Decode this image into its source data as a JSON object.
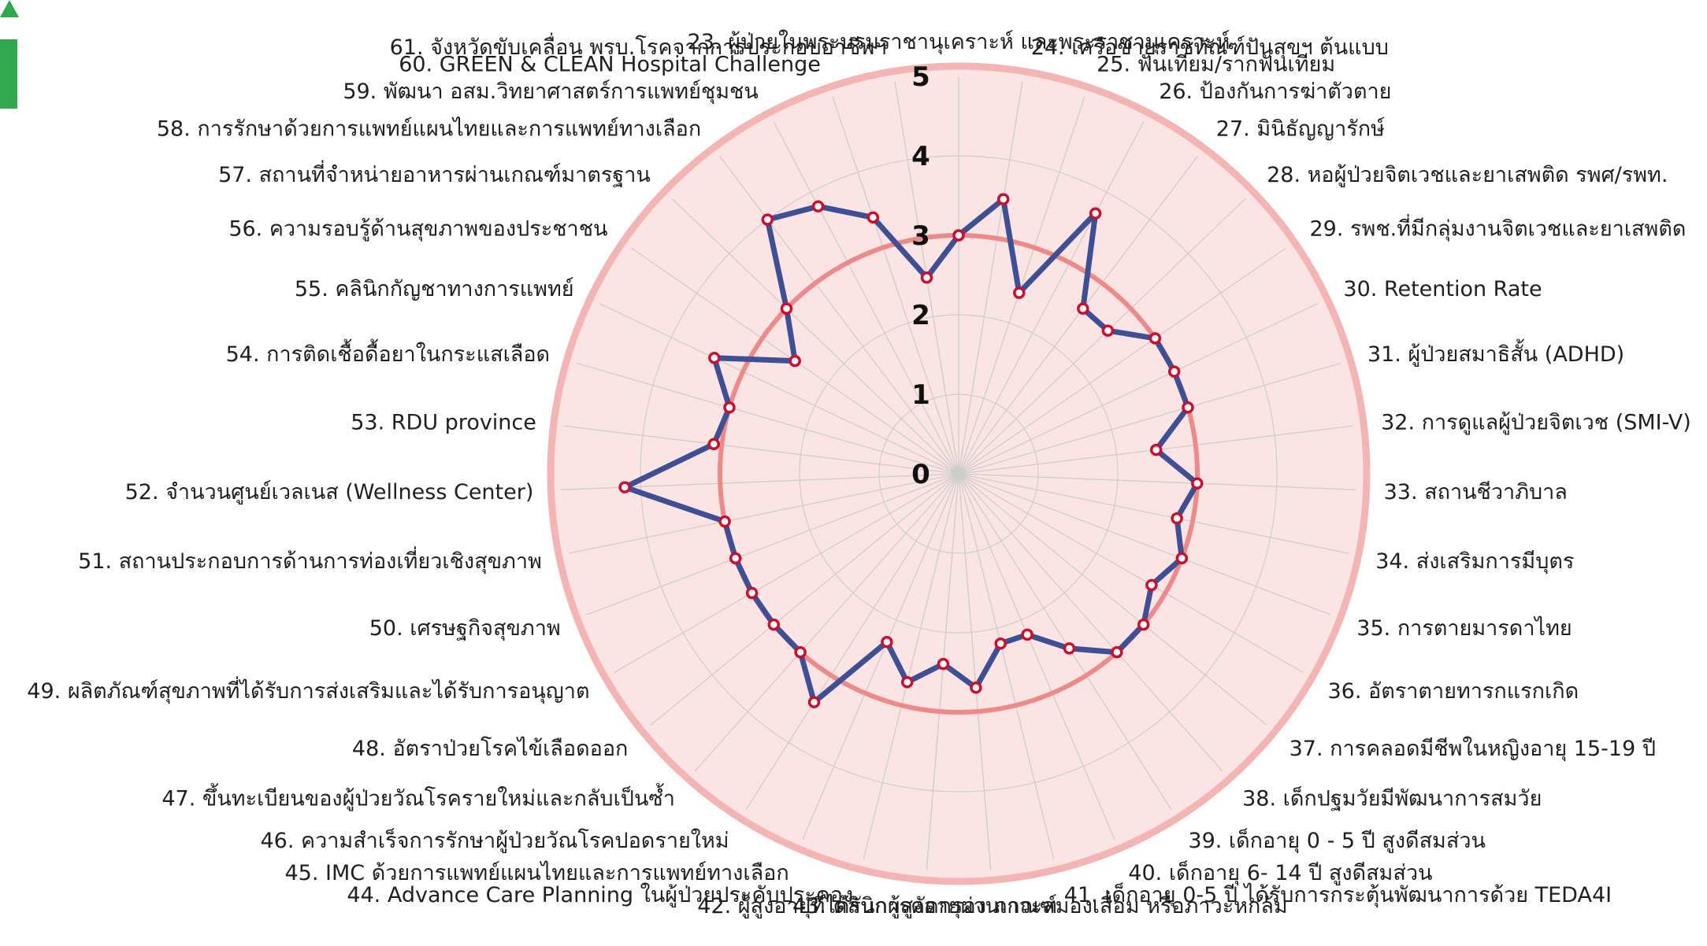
{
  "chart_data": {
    "type": "radar",
    "rlim": [
      0,
      5
    ],
    "rticks": [
      "0",
      "1",
      "2",
      "3",
      "4",
      "5"
    ],
    "target": 3,
    "colors": {
      "series": "#3f4f93",
      "marker_edge": "#c8102e",
      "marker_fill": "#ffffff",
      "target_ring": "#ec8a8a",
      "outer_ring": "#f3b4b4",
      "fill": "#fce4e4",
      "grid": "#cccccc"
    },
    "categories": [
      "23. ผู้ป่วยในพระบรมราชานุเคราะห์ และพระราชานุเคราะห์",
      "24. เครือข่ายราชทัณฑ์ปันสุขฯ ต้นแบบ",
      "25. ฟันเทียม/รากฟันเทียม",
      "26. ป้องกันการฆ่าตัวตาย",
      "27. มินิธัญญารักษ์",
      "28. หอผู้ป่วยจิตเวชและยาเสพติด รพศ/รพท.",
      "29. รพช.ที่มีกลุ่มงานจิตเวชและยาเสพติด",
      "30. Retention Rate",
      "31. ผู้ป่วยสมาธิสั้น (ADHD)",
      "32. การดูแลผู้ป่วยจิตเวช (SMI-V)",
      "33. สถานชีวาภิบาล",
      "34. ส่งเสริมการมีบุตร",
      "35. การตายมารดาไทย",
      "36. อัตราตายทารกแรกเกิด",
      "37. การคลอดมีชีพในหญิงอายุ 15-19 ปี",
      "38. เด็กปฐมวัยมีพัฒนาการสมวัย",
      "39. เด็กอายุ 0 - 5 ปี สูงดีสมส่วน",
      "40. เด็กอายุ 6- 14 ปี สูงดีสมส่วน",
      "41. เด็กอายุ 0-5 ปี ได้รับการกระตุ้นพัฒนาการด้วย TEDA4I",
      "42. ผู้สูงอายุที่ได้รับการคัดกรอง ภาวะสมองเสื่อม หรือภาวะหกล้ม",
      "43. คลินิกผู้สูงอายุผ่านเกณฑ์",
      "44. Advance Care Planning ในผู้ป่วยประคับประคอง",
      "45. IMC ด้วยการแพทย์แผนไทยและการแพทย์ทางเลือก",
      "46. ความสำเร็จการรักษาผู้ป่วยวัณโรคปอดรายใหม่",
      "47. ขึ้นทะเบียนของผู้ป่วยวัณโรครายใหม่และกลับเป็นซ้ำ",
      "48. อัตราป่วยโรคไข้เลือดออก",
      "49. ผลิตภัณฑ์สุขภาพที่ได้รับการส่งเสริมและได้รับการอนุญาต",
      "50. เศรษฐกิจสุขภาพ",
      "51. สถานประกอบการด้านการท่องเที่ยวเชิงสุขภาพ",
      "52. จำนวนศูนย์เวลเนส (Wellness Center)",
      "53. RDU province",
      "54. การติดเชื้อดื้อยาในกระแสเลือด",
      "55. คลินิกกัญชาทางการแพทย์",
      "56. ความรอบรู้ด้านสุขภาพของประชาชน",
      "57. สถานที่จำหน่ายอาหารผ่านเกณฑ์มาตรฐาน",
      "58. การรักษาด้วยการแพทย์แผนไทยและการแพทย์ทางเลือก",
      "59. พัฒนา อสม.วิทยาศาสตร์การแพทย์ชุมชน",
      "60. GREEN & CLEAN Hospital Challenge",
      "61. จังหวัดขับเคลื่อน พรบ.โรคจากการประกอบอาชีพฯ"
    ],
    "values": [
      3.0,
      3.5,
      2.4,
      3.7,
      2.6,
      2.6,
      3.0,
      3.0,
      3.0,
      2.5,
      3.0,
      2.8,
      3.0,
      2.8,
      3.0,
      3.0,
      2.6,
      2.2,
      2.2,
      2.7,
      2.4,
      2.7,
      2.3,
      3.4,
      3.0,
      3.0,
      3.0,
      3.0,
      3.0,
      4.2,
      3.1,
      3.0,
      3.4,
      2.5,
      3.0,
      4.0,
      3.8,
      3.4,
      2.5
    ],
    "series": [
      {
        "values": [
          3.0,
          3.5,
          2.4,
          3.7,
          2.6,
          2.6,
          3.0,
          3.0,
          3.0,
          2.5,
          3.0,
          2.8,
          3.0,
          2.8,
          3.0,
          3.0,
          2.6,
          2.2,
          2.2,
          2.7,
          2.4,
          2.7,
          2.3,
          3.4,
          3.0,
          3.0,
          3.0,
          3.0,
          3.0,
          4.2,
          3.1,
          3.0,
          3.4,
          2.5,
          3.0,
          4.0,
          3.8,
          3.4,
          2.5
        ]
      }
    ],
    "grid": true
  }
}
